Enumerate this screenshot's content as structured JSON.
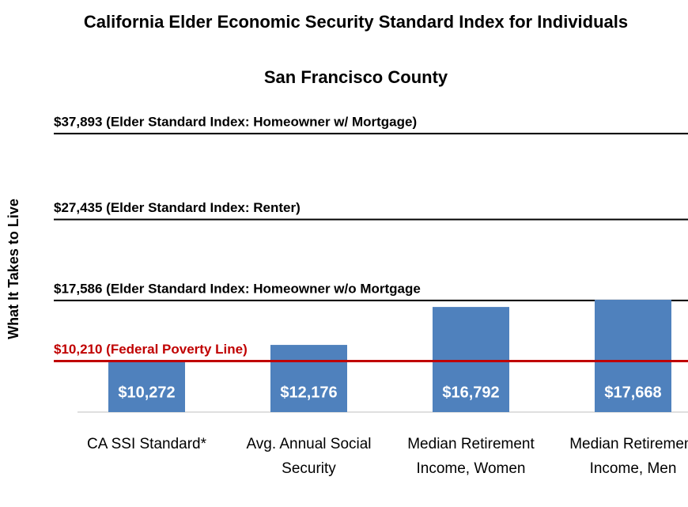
{
  "chart_data": {
    "type": "bar",
    "title": "California Elder Economic Security Standard Index for Individuals",
    "subtitle": "San Francisco County",
    "y_axis_label": "What It Takes to Live",
    "categories": [
      "CA SSI Standard*",
      "Avg. Annual Social Security",
      "Median Retirement Income, Women",
      "Median Retirement Income, Men"
    ],
    "values": [
      10272,
      12176,
      16792,
      17668
    ],
    "value_labels": [
      "$10,272",
      "$12,176",
      "$16,792",
      "$17,668"
    ],
    "color": "#4f81bd",
    "ylim": [
      4000,
      40000
    ],
    "reference_lines": [
      {
        "value": 37893,
        "label": "$37,893  (Elder Standard Index:  Homeowner w/ Mortgage)",
        "color": "#000000"
      },
      {
        "value": 27435,
        "label": "$27,435  (Elder Standard Index: Renter)",
        "color": "#000000"
      },
      {
        "value": 17586,
        "label": "$17,586  (Elder Standard Index: Homeowner w/o Mortgage",
        "color": "#000000"
      },
      {
        "value": 10210,
        "label": "$10,210  (Federal Poverty Line)",
        "color": "#c00000"
      }
    ]
  }
}
